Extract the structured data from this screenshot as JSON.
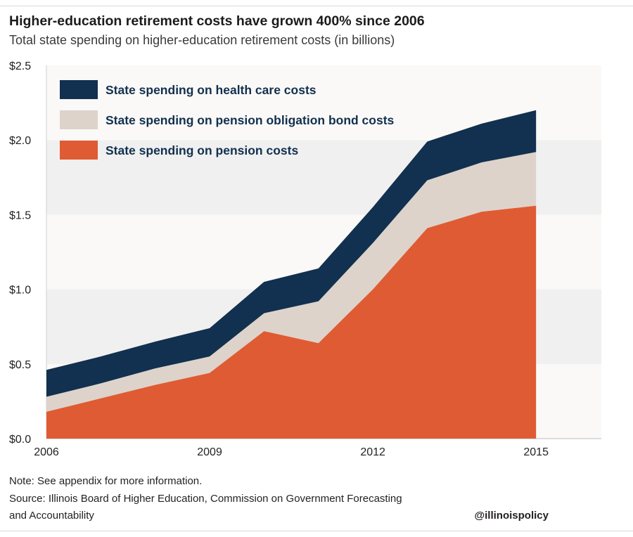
{
  "title": "Higher-education retirement costs have grown 400% since 2006",
  "subtitle": "Total state spending on higher-education retirement costs (in billions)",
  "note": "Note: See appendix for more information.",
  "source_line1": "Source: Illinois Board of Higher Education, Commission on Government Forecasting",
  "source_line2": "and Accountability",
  "handle": "@illinoispolicy",
  "colors": {
    "health": "#12304f",
    "bond": "#ddd3ca",
    "pension": "#df5b33",
    "band_light": "#faf9f7",
    "band_dark": "#f0f0f0"
  },
  "chart_data": {
    "type": "area",
    "stacked": true,
    "x": [
      2006,
      2007,
      2008,
      2009,
      2010,
      2011,
      2012,
      2013,
      2014,
      2015
    ],
    "xticks": [
      2006,
      2009,
      2012,
      2015
    ],
    "xtick_labels": [
      "2006",
      "2009",
      "2012",
      "2015"
    ],
    "ylim": [
      0,
      2.5
    ],
    "yticks": [
      0,
      0.5,
      1.0,
      1.5,
      2.0,
      2.5
    ],
    "ytick_labels": [
      "$0.0",
      "$0.5",
      "$1.0",
      "$1.5",
      "$2.0",
      "$2.5"
    ],
    "legend_placement": "top-left",
    "series": [
      {
        "name": "State spending on pension costs",
        "color": "#df5b33",
        "values": [
          0.18,
          0.27,
          0.36,
          0.44,
          0.72,
          0.64,
          1.0,
          1.41,
          1.52,
          1.56
        ]
      },
      {
        "name": "State spending on pension obligation bond costs",
        "color": "#ddd3ca",
        "values": [
          0.1,
          0.1,
          0.11,
          0.11,
          0.12,
          0.28,
          0.31,
          0.32,
          0.33,
          0.36
        ]
      },
      {
        "name": "State spending on health care costs",
        "color": "#12304f",
        "values": [
          0.18,
          0.18,
          0.18,
          0.19,
          0.21,
          0.22,
          0.24,
          0.26,
          0.26,
          0.28
        ]
      }
    ],
    "legend_order": [
      2,
      1,
      0
    ]
  }
}
